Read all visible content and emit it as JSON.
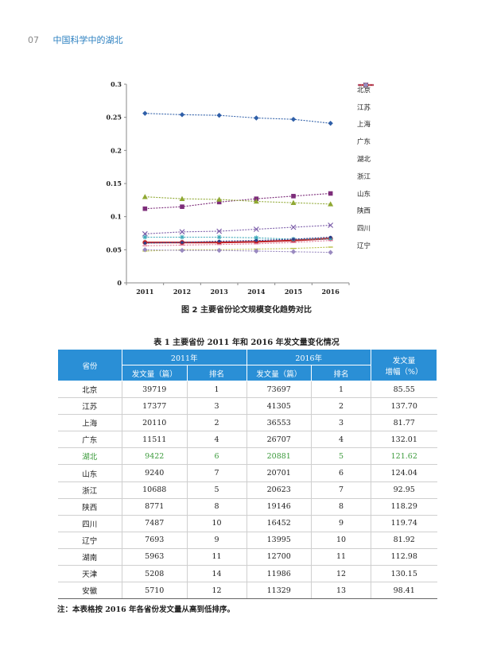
{
  "header": {
    "page_number": "07",
    "title": "中国科学中的湖北"
  },
  "figure_caption": "图 2 主要省份论文规模变化趋势对比",
  "chart_data": {
    "type": "line",
    "x": [
      "2011",
      "2012",
      "2013",
      "2014",
      "2015",
      "2016"
    ],
    "y_ticks": [
      "0",
      "0.05",
      "0.1",
      "0.15",
      "0.2",
      "0.25",
      "0.3"
    ],
    "ylim": [
      0,
      0.3
    ],
    "legend_position": "right",
    "series": [
      {
        "name": "北京",
        "values": [
          0.256,
          0.254,
          0.253,
          0.249,
          0.247,
          0.241
        ],
        "color": "#2f5fa8",
        "marker": "diamond"
      },
      {
        "name": "江苏",
        "values": [
          0.112,
          0.115,
          0.122,
          0.127,
          0.131,
          0.135
        ],
        "color": "#7d2d7a",
        "marker": "square"
      },
      {
        "name": "上海",
        "values": [
          0.13,
          0.127,
          0.126,
          0.123,
          0.121,
          0.119
        ],
        "color": "#8fa832",
        "marker": "triangle"
      },
      {
        "name": "广东",
        "values": [
          0.074,
          0.077,
          0.078,
          0.081,
          0.084,
          0.087
        ],
        "color": "#7b5ca8",
        "marker": "x"
      },
      {
        "name": "湖北",
        "values": [
          0.061,
          0.061,
          0.061,
          0.062,
          0.064,
          0.067
        ],
        "color": "#c0242a",
        "marker": "circle"
      },
      {
        "name": "浙江",
        "values": [
          0.069,
          0.069,
          0.069,
          0.068,
          0.066,
          0.066
        ],
        "color": "#3aa7b8",
        "marker": "star"
      },
      {
        "name": "山东",
        "values": [
          0.06,
          0.061,
          0.063,
          0.064,
          0.066,
          0.069
        ],
        "color": "#2a3f8c",
        "marker": "dot"
      },
      {
        "name": "陕西",
        "values": [
          0.056,
          0.057,
          0.058,
          0.059,
          0.061,
          0.064
        ],
        "color": "#e07a9a",
        "marker": "dash"
      },
      {
        "name": "四川",
        "values": [
          0.048,
          0.05,
          0.05,
          0.051,
          0.052,
          0.054
        ],
        "color": "#b8c04a",
        "marker": "dash"
      },
      {
        "name": "辽宁",
        "values": [
          0.05,
          0.049,
          0.049,
          0.048,
          0.047,
          0.046
        ],
        "color": "#9a8ac0",
        "marker": "diamond"
      }
    ]
  },
  "table_title": "表 1 主要省份 2011 年和 2016 年发文量变化情况",
  "table": {
    "col_province": "省份",
    "year_2011": "2011年",
    "year_2016": "2016年",
    "col_growth_line1": "发文量",
    "col_growth_line2": "增幅（%）",
    "col_count": "发文量（篇）",
    "col_rank": "排名",
    "rows": [
      [
        "北京",
        "39719",
        "1",
        "73697",
        "1",
        "85.55"
      ],
      [
        "江苏",
        "17377",
        "3",
        "41305",
        "2",
        "137.70"
      ],
      [
        "上海",
        "20110",
        "2",
        "36553",
        "3",
        "81.77"
      ],
      [
        "广东",
        "11511",
        "4",
        "26707",
        "4",
        "132.01"
      ],
      [
        "湖北",
        "9422",
        "6",
        "20881",
        "5",
        "121.62"
      ],
      [
        "山东",
        "9240",
        "7",
        "20701",
        "6",
        "124.04"
      ],
      [
        "浙江",
        "10688",
        "5",
        "20623",
        "7",
        "92.95"
      ],
      [
        "陕西",
        "8771",
        "8",
        "19146",
        "8",
        "118.29"
      ],
      [
        "四川",
        "7487",
        "10",
        "16452",
        "9",
        "119.74"
      ],
      [
        "辽宁",
        "7693",
        "9",
        "13995",
        "10",
        "81.92"
      ],
      [
        "湖南",
        "5963",
        "11",
        "12700",
        "11",
        "112.98"
      ],
      [
        "天津",
        "5208",
        "14",
        "11986",
        "12",
        "130.15"
      ],
      [
        "安徽",
        "5710",
        "12",
        "11329",
        "13",
        "98.41"
      ]
    ],
    "highlight_row_color": "#3a9a3a"
  },
  "note": "注：本表格按 2016 年各省份发文量从高到低排序。"
}
